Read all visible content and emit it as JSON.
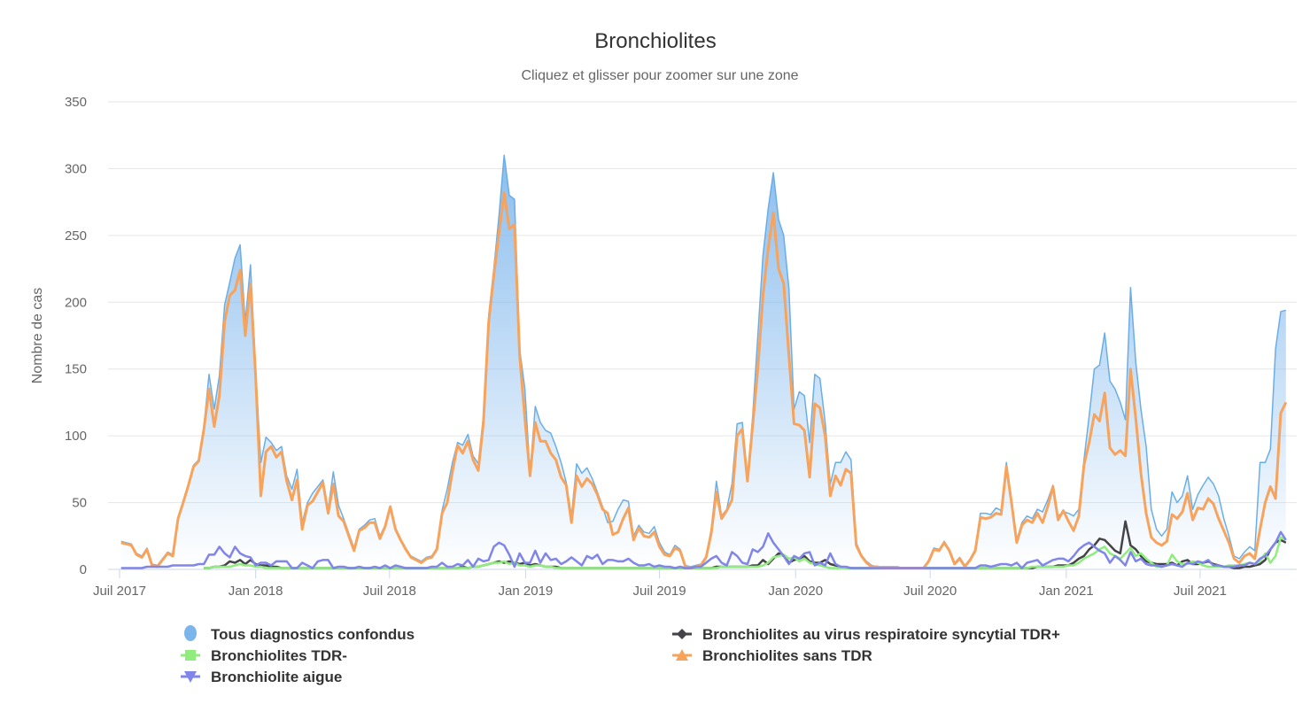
{
  "chart_data": {
    "type": "area",
    "title": "Bronchiolites",
    "subtitle": "Cliquez et glisser pour zoomer sur une zone",
    "xlabel": "",
    "ylabel": "Nombre de cas",
    "ylim": [
      0,
      350
    ],
    "y_ticks": [
      0,
      50,
      100,
      150,
      200,
      250,
      300,
      350
    ],
    "grid": true,
    "legend_position": "bottom",
    "x_start": "2017-07-03",
    "x_interval": "week",
    "x_ticks": [
      {
        "date": "2017-07-01",
        "label": "Juil 2017"
      },
      {
        "date": "2018-01-01",
        "label": "Jan 2018"
      },
      {
        "date": "2018-07-01",
        "label": "Juil 2018"
      },
      {
        "date": "2019-01-01",
        "label": "Jan 2019"
      },
      {
        "date": "2019-07-01",
        "label": "Juil 2019"
      },
      {
        "date": "2020-01-01",
        "label": "Jan 2020"
      },
      {
        "date": "2020-07-01",
        "label": "Juil 2020"
      },
      {
        "date": "2021-01-01",
        "label": "Jan 2021"
      },
      {
        "date": "2021-07-01",
        "label": "Juil 2021"
      }
    ],
    "series": [
      {
        "name": "Tous diagnostics confondus",
        "kind": "area",
        "color": "#7cb5ec",
        "marker": "circle",
        "values": [
          21,
          20,
          19,
          12,
          10,
          16,
          4,
          3,
          8,
          13,
          11,
          39,
          51,
          64,
          78,
          82,
          107,
          146,
          120,
          145,
          198,
          215,
          233,
          243,
          185,
          228,
          150,
          80,
          99,
          95,
          89,
          92,
          70,
          60,
          75,
          35,
          50,
          57,
          62,
          67,
          45,
          73,
          48,
          38,
          27,
          16,
          30,
          33,
          37,
          38,
          25,
          33,
          47,
          31,
          23,
          16,
          10,
          8,
          6,
          9,
          10,
          16,
          44,
          60,
          80,
          95,
          93,
          101,
          85,
          79,
          115,
          190,
          225,
          265,
          310,
          280,
          277,
          165,
          135,
          72,
          122,
          110,
          104,
          102,
          92,
          80,
          65,
          40,
          79,
          72,
          76,
          68,
          58,
          47,
          35,
          36,
          45,
          52,
          51,
          25,
          33,
          28,
          27,
          32,
          20,
          13,
          11,
          18,
          15,
          3,
          2,
          3,
          4,
          10,
          30,
          66,
          40,
          45,
          64,
          109,
          110,
          68,
          115,
          175,
          235,
          270,
          297,
          262,
          250,
          210,
          120,
          133,
          130,
          95,
          146,
          143,
          110,
          64,
          80,
          80,
          88,
          82,
          20,
          11,
          6,
          3,
          2,
          2,
          2,
          2,
          2,
          1,
          1,
          1,
          1,
          1,
          7,
          16,
          15,
          21,
          15,
          5,
          9,
          3,
          8,
          15,
          42,
          42,
          41,
          46,
          44,
          80,
          52,
          22,
          35,
          40,
          38,
          45,
          43,
          52,
          63,
          40,
          43,
          42,
          40,
          45,
          82,
          115,
          150,
          153,
          177,
          141,
          135,
          125,
          112,
          211,
          155,
          120,
          92,
          45,
          30,
          25,
          30,
          58,
          50,
          55,
          70,
          45,
          56,
          63,
          69,
          64,
          55,
          38,
          25,
          10,
          8,
          13,
          17,
          14,
          80,
          80,
          90,
          165,
          193,
          194
        ]
      },
      {
        "name": "Bronchiolites au virus respiratoire syncytial TDR+",
        "kind": "line",
        "color": "#434348",
        "marker": "diamond",
        "values": [
          null,
          null,
          null,
          null,
          null,
          null,
          null,
          null,
          null,
          null,
          null,
          null,
          null,
          null,
          null,
          null,
          1,
          1,
          2,
          2,
          3,
          6,
          5,
          7,
          4,
          7,
          4,
          3,
          3,
          2,
          2,
          1,
          1,
          1,
          1,
          1,
          1,
          1,
          1,
          1,
          1,
          1,
          1,
          1,
          1,
          1,
          1,
          1,
          1,
          1,
          1,
          1,
          1,
          1,
          1,
          1,
          1,
          1,
          1,
          1,
          1,
          1,
          1,
          1,
          1,
          1,
          2,
          1,
          2,
          2,
          3,
          4,
          5,
          6,
          5,
          6,
          5,
          4,
          5,
          3,
          4,
          3,
          2,
          2,
          2,
          1,
          1,
          1,
          1,
          1,
          1,
          1,
          1,
          1,
          1,
          1,
          1,
          1,
          1,
          1,
          1,
          1,
          1,
          1,
          1,
          1,
          1,
          1,
          1,
          1,
          1,
          1,
          1,
          1,
          1,
          2,
          2,
          2,
          2,
          2,
          2,
          2,
          3,
          3,
          7,
          4,
          8,
          12,
          10,
          5,
          7,
          8,
          10,
          6,
          5,
          5,
          7,
          4,
          3,
          2,
          1,
          1,
          1,
          1,
          1,
          1,
          1,
          1,
          1,
          1,
          1,
          1,
          1,
          1,
          1,
          1,
          1,
          1,
          1,
          1,
          1,
          1,
          1,
          1,
          1,
          1,
          1,
          1,
          1,
          1,
          1,
          1,
          1,
          1,
          1,
          1,
          1,
          2,
          2,
          2,
          2,
          3,
          3,
          3,
          5,
          8,
          10,
          15,
          18,
          23,
          22,
          18,
          14,
          12,
          36,
          18,
          15,
          10,
          6,
          5,
          4,
          4,
          4,
          5,
          3,
          6,
          7,
          4,
          4,
          5,
          6,
          4,
          3,
          2,
          2,
          1,
          1,
          2,
          2,
          3,
          4,
          7,
          15,
          20,
          22,
          20
        ]
      },
      {
        "name": "Bronchiolites TDR-",
        "kind": "line",
        "color": "#90ed7d",
        "marker": "square",
        "values": [
          null,
          null,
          null,
          null,
          null,
          null,
          null,
          null,
          null,
          null,
          null,
          null,
          null,
          null,
          null,
          null,
          1,
          1,
          2,
          2,
          2,
          2,
          3,
          4,
          3,
          3,
          2,
          2,
          1,
          1,
          1,
          1,
          1,
          1,
          1,
          1,
          1,
          1,
          1,
          1,
          1,
          1,
          1,
          1,
          1,
          1,
          1,
          1,
          1,
          1,
          1,
          1,
          1,
          1,
          1,
          1,
          1,
          1,
          1,
          1,
          1,
          1,
          1,
          1,
          1,
          1,
          1,
          1,
          2,
          2,
          3,
          4,
          5,
          5,
          6,
          4,
          5,
          3,
          3,
          2,
          3,
          3,
          2,
          2,
          1,
          1,
          1,
          1,
          1,
          1,
          1,
          1,
          1,
          1,
          1,
          1,
          1,
          1,
          1,
          1,
          1,
          1,
          1,
          1,
          1,
          1,
          1,
          1,
          1,
          1,
          1,
          1,
          1,
          1,
          1,
          1,
          2,
          2,
          2,
          2,
          2,
          2,
          2,
          2,
          3,
          5,
          9,
          10,
          11,
          8,
          9,
          6,
          8,
          5,
          4,
          3,
          2,
          1,
          1,
          1,
          1,
          1,
          1,
          1,
          1,
          1,
          1,
          1,
          1,
          1,
          1,
          1,
          1,
          1,
          1,
          1,
          1,
          1,
          1,
          1,
          1,
          1,
          1,
          1,
          1,
          1,
          1,
          1,
          1,
          1,
          1,
          1,
          1,
          1,
          1,
          1,
          2,
          2,
          2,
          2,
          2,
          2,
          2,
          3,
          3,
          5,
          8,
          10,
          12,
          15,
          17,
          12,
          10,
          8,
          12,
          16,
          10,
          12,
          8,
          5,
          2,
          2,
          3,
          11,
          6,
          4,
          4,
          6,
          5,
          3,
          2,
          2,
          2,
          2,
          3,
          3,
          3,
          4,
          5,
          4,
          6,
          12,
          5,
          10,
          24,
          22
        ]
      },
      {
        "name": "Bronchiolites sans TDR",
        "kind": "line",
        "color": "#f7a35c",
        "marker": "triangle",
        "values": [
          20,
          19,
          18,
          11,
          9,
          15,
          3,
          2,
          7,
          12,
          10,
          38,
          50,
          63,
          77,
          81,
          105,
          135,
          107,
          130,
          185,
          205,
          209,
          224,
          175,
          214,
          145,
          55,
          88,
          92,
          84,
          88,
          66,
          52,
          67,
          30,
          48,
          51,
          58,
          65,
          42,
          64,
          40,
          36,
          25,
          14,
          29,
          31,
          35,
          35,
          23,
          32,
          47,
          30,
          22,
          15,
          9,
          7,
          5,
          8,
          9,
          15,
          42,
          50,
          73,
          93,
          87,
          96,
          82,
          74,
          110,
          185,
          220,
          252,
          282,
          255,
          258,
          160,
          113,
          70,
          110,
          96,
          96,
          87,
          82,
          69,
          63,
          35,
          70,
          62,
          68,
          64,
          56,
          45,
          42,
          26,
          28,
          38,
          46,
          22,
          31,
          25,
          24,
          28,
          17,
          11,
          10,
          16,
          14,
          2,
          1,
          2,
          3,
          9,
          27,
          58,
          38,
          44,
          52,
          100,
          105,
          66,
          108,
          150,
          205,
          240,
          267,
          225,
          214,
          160,
          109,
          108,
          104,
          69,
          124,
          121,
          100,
          55,
          70,
          63,
          75,
          72,
          18,
          10,
          5,
          2,
          2,
          1,
          1,
          1,
          1,
          1,
          1,
          1,
          1,
          1,
          6,
          15,
          14,
          20,
          14,
          4,
          8,
          2,
          7,
          14,
          39,
          38,
          39,
          42,
          41,
          77,
          50,
          20,
          33,
          37,
          35,
          42,
          35,
          47,
          62,
          37,
          44,
          36,
          29,
          40,
          78,
          95,
          116,
          111,
          132,
          91,
          86,
          89,
          85,
          150,
          113,
          72,
          42,
          24,
          20,
          18,
          21,
          41,
          38,
          43,
          57,
          37,
          46,
          45,
          53,
          49,
          38,
          29,
          20,
          8,
          5,
          10,
          12,
          8,
          30,
          50,
          62,
          53,
          117,
          125
        ]
      },
      {
        "name": "Bronchiolite aigue",
        "kind": "line",
        "color": "#8085e9",
        "marker": "triangle-down",
        "values": [
          1,
          1,
          1,
          1,
          1,
          2,
          2,
          2,
          2,
          2,
          3,
          3,
          3,
          3,
          3,
          4,
          4,
          11,
          11,
          17,
          12,
          9,
          17,
          12,
          10,
          9,
          3,
          5,
          5,
          3,
          6,
          6,
          6,
          1,
          1,
          5,
          3,
          1,
          6,
          7,
          7,
          1,
          2,
          2,
          1,
          1,
          2,
          1,
          1,
          2,
          1,
          3,
          1,
          3,
          2,
          1,
          1,
          1,
          1,
          1,
          2,
          2,
          5,
          2,
          2,
          4,
          3,
          7,
          2,
          8,
          6,
          7,
          17,
          20,
          18,
          11,
          2,
          12,
          5,
          5,
          14,
          5,
          12,
          7,
          8,
          4,
          6,
          9,
          6,
          3,
          10,
          8,
          11,
          4,
          7,
          7,
          6,
          6,
          8,
          5,
          3,
          3,
          4,
          2,
          3,
          2,
          2,
          1,
          2,
          1,
          1,
          2,
          2,
          5,
          8,
          10,
          5,
          3,
          13,
          10,
          5,
          4,
          15,
          13,
          17,
          27,
          20,
          15,
          10,
          4,
          10,
          8,
          12,
          13,
          3,
          5,
          3,
          12,
          4,
          2,
          2,
          1,
          1,
          1,
          1,
          1,
          1,
          1,
          1,
          1,
          1,
          1,
          1,
          1,
          1,
          1,
          1,
          1,
          1,
          1,
          1,
          1,
          1,
          1,
          1,
          1,
          3,
          3,
          2,
          3,
          4,
          4,
          3,
          5,
          1,
          5,
          6,
          7,
          3,
          5,
          7,
          8,
          8,
          6,
          10,
          15,
          18,
          20,
          17,
          14,
          12,
          5,
          10,
          7,
          3,
          13,
          6,
          8,
          4,
          3,
          3,
          2,
          3,
          4,
          3,
          2,
          5,
          4,
          6,
          5,
          7,
          3,
          3,
          2,
          2,
          2,
          3,
          3,
          5,
          4,
          8,
          10,
          15,
          20,
          28,
          22
        ]
      }
    ]
  }
}
